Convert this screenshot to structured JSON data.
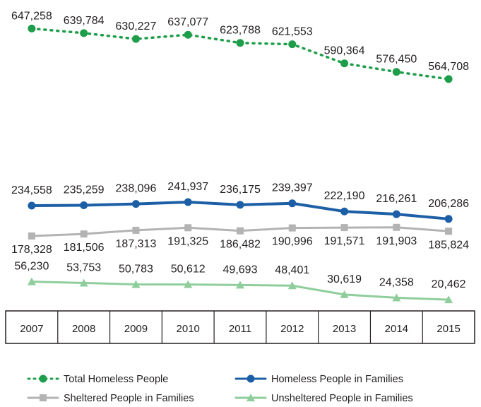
{
  "chart_data": {
    "type": "line",
    "categories": [
      "2007",
      "2008",
      "2009",
      "2010",
      "2011",
      "2012",
      "2013",
      "2014",
      "2015"
    ],
    "series": [
      {
        "key": "total",
        "name": "Total Homeless People",
        "values": [
          647258,
          639784,
          630227,
          637077,
          623788,
          621553,
          590364,
          576450,
          564708
        ],
        "labels": [
          "647,258",
          "639,784",
          "630,227",
          "637,077",
          "623,788",
          "621,553",
          "590,364",
          "576,450",
          "564,708"
        ],
        "color": "#1e9e4a",
        "marker": "circle",
        "dash": "dotted"
      },
      {
        "key": "families",
        "name": "Homeless People in Families",
        "values": [
          234558,
          235259,
          238096,
          241937,
          236175,
          239397,
          222190,
          216261,
          206286
        ],
        "labels": [
          "234,558",
          "235,259",
          "238,096",
          "241,937",
          "236,175",
          "239,397",
          "222,190",
          "216,261",
          "206,286"
        ],
        "color": "#1d5fa6",
        "marker": "circle",
        "dash": "solid"
      },
      {
        "key": "sheltered",
        "name": "Sheltered People in Families",
        "values": [
          178328,
          181506,
          187313,
          191325,
          186482,
          190996,
          191571,
          191903,
          185824
        ],
        "labels": [
          "178,328",
          "181,506",
          "187,313",
          "191,325",
          "186,482",
          "190,996",
          "191,571",
          "191,903",
          "185,824"
        ],
        "color": "#b3b3b3",
        "marker": "square",
        "dash": "solid"
      },
      {
        "key": "unsheltered",
        "name": "Unsheltered People in Families",
        "values": [
          56230,
          53753,
          50783,
          50612,
          49693,
          48401,
          30619,
          24358,
          20462
        ],
        "labels": [
          "56,230",
          "53,753",
          "50,783",
          "50,612",
          "49,693",
          "48,401",
          "30,619",
          "24,358",
          "20,462"
        ],
        "color": "#8fce9c",
        "marker": "triangle",
        "dash": "solid"
      }
    ],
    "grid": false,
    "legend_position": "bottom",
    "legend_order": [
      "total",
      "families",
      "sheltered",
      "unsheltered"
    ],
    "xlabel": "",
    "ylabel": ""
  }
}
